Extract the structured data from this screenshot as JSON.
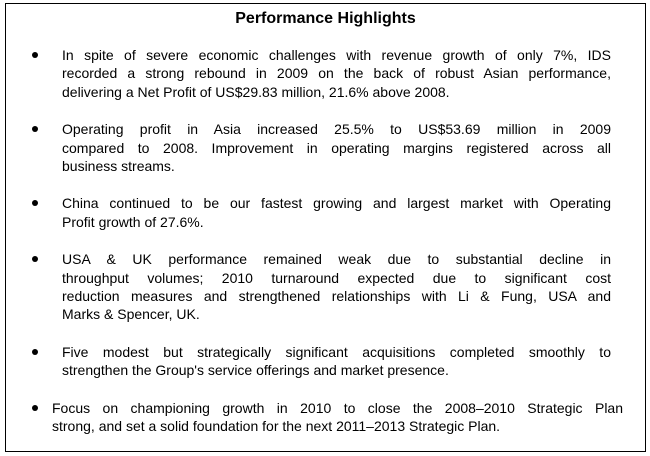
{
  "title": "Performance Highlights",
  "bullets": [
    [
      "In spite of severe economic challenges with revenue growth of only 7%, IDS",
      "recorded a strong rebound in 2009 on the back of robust Asian performance,",
      "delivering a Net Profit of US$29.83 million, 21.6% above 2008."
    ],
    [
      "Operating profit in Asia increased 25.5% to US$53.69 million in 2009",
      "compared to 2008. Improvement in operating margins registered across all",
      "business streams."
    ],
    [
      "China continued to be our fastest growing and largest market with Operating",
      "Profit growth of 27.6%."
    ],
    [
      "USA & UK performance remained weak due to substantial decline in",
      "throughput volumes; 2010 turnaround expected due to significant cost",
      "reduction measures and strengthened relationships with Li & Fung, USA and",
      "Marks & Spencer, UK."
    ],
    [
      "Five modest but strategically significant acquisitions completed smoothly to",
      "strengthen the Group's service offerings and market presence."
    ],
    [
      "Focus on championing growth in 2010 to close the 2008–2010 Strategic Plan",
      "strong, and set a solid foundation for the next 2011–2013 Strategic Plan."
    ]
  ]
}
